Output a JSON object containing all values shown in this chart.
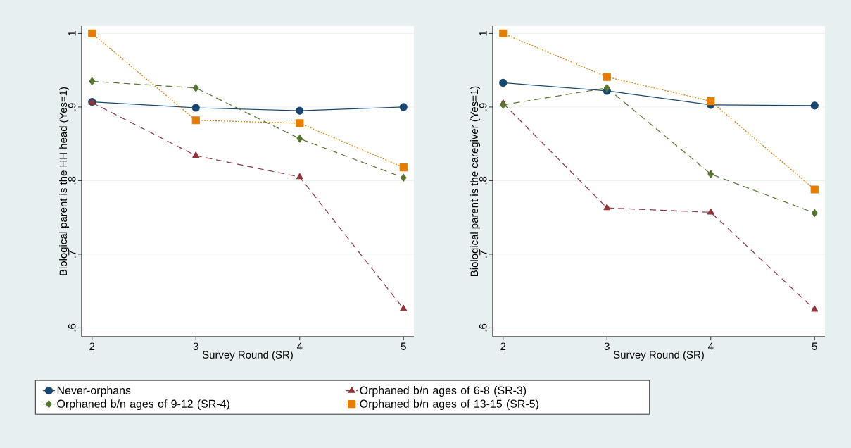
{
  "chart_data": [
    {
      "type": "line",
      "xlabel": "Survey Round (SR)",
      "ylabel": "Biological parent is the HH head (Yes=1)",
      "x": [
        2,
        3,
        4,
        5
      ],
      "xlim": [
        1.9,
        5.1
      ],
      "xticks": [
        2,
        3,
        4,
        5
      ],
      "ylim": [
        0.588,
        1.01
      ],
      "yticks": [
        {
          "value": 0.6,
          "label": ".6"
        },
        {
          "value": 0.7,
          "label": ".7"
        },
        {
          "value": 0.8,
          "label": ".8"
        },
        {
          "value": 0.9,
          "label": ".9"
        },
        {
          "value": 1,
          "label": "1"
        }
      ],
      "grid": "y",
      "legend": "bottom",
      "series": [
        {
          "name": "Never-orphans",
          "color": "#1a476f",
          "marker": "circle",
          "line_style": "solid",
          "values": [
            0.907,
            0.899,
            0.895,
            0.9
          ]
        },
        {
          "name": "Orphaned b/n ages of 6-8 (SR-3)",
          "color": "#90353b",
          "marker": "triangle",
          "line_style": "dashed",
          "values": [
            0.906,
            0.834,
            0.805,
            0.626
          ]
        },
        {
          "name": "Orphaned b/n ages of 9-12 (SR-4)",
          "color": "#55752f",
          "marker": "diamond",
          "line_style": "dashed",
          "values": [
            0.935,
            0.926,
            0.857,
            0.804
          ]
        },
        {
          "name": "Orphaned b/n ages of 13-15 (SR-5)",
          "color": "#e37e00",
          "marker": "square",
          "line_style": "dotted",
          "values": [
            1.0,
            0.882,
            0.878,
            0.818
          ]
        }
      ]
    },
    {
      "type": "line",
      "xlabel": "Survey Round (SR)",
      "ylabel": "Biological parent is the caregiver (Yes=1)",
      "x": [
        2,
        3,
        4,
        5
      ],
      "xlim": [
        1.9,
        5.1
      ],
      "xticks": [
        2,
        3,
        4,
        5
      ],
      "ylim": [
        0.588,
        1.01
      ],
      "yticks": [
        {
          "value": 0.6,
          "label": ".6"
        },
        {
          "value": 0.7,
          "label": ".7"
        },
        {
          "value": 0.8,
          "label": ".8"
        },
        {
          "value": 0.9,
          "label": ".9"
        },
        {
          "value": 1,
          "label": "1"
        }
      ],
      "grid": "y",
      "series": [
        {
          "color": "#1a476f",
          "marker": "circle",
          "line_style": "solid",
          "values": [
            0.933,
            0.922,
            0.903,
            0.902
          ]
        },
        {
          "color": "#90353b",
          "marker": "triangle",
          "line_style": "dashed",
          "values": [
            0.905,
            0.763,
            0.757,
            0.625
          ]
        },
        {
          "color": "#55752f",
          "marker": "diamond",
          "line_style": "dashed",
          "values": [
            0.903,
            0.926,
            0.809,
            0.756
          ]
        },
        {
          "color": "#e37e00",
          "marker": "square",
          "line_style": "dotted",
          "values": [
            1.0,
            0.941,
            0.908,
            0.788
          ]
        }
      ]
    }
  ]
}
